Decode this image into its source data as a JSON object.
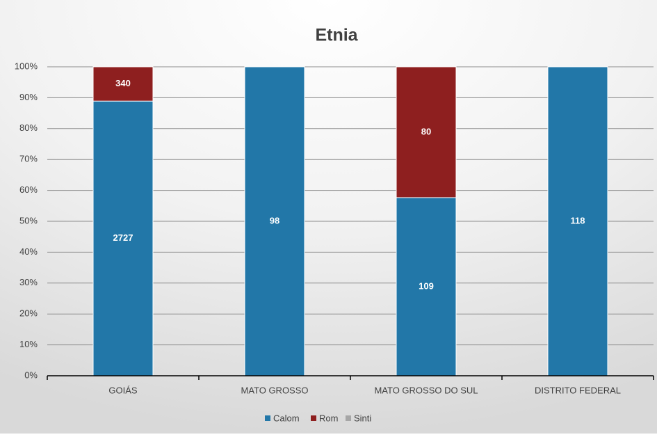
{
  "chart_data": {
    "type": "stacked_percent_bar",
    "title": "Etnia",
    "categories": [
      "GOIÁS",
      "MATO GROSSO",
      "MATO GROSSO DO SUL",
      "DISTRITO FEDERAL"
    ],
    "series": [
      {
        "name": "Calom",
        "color": "#2277a8",
        "values": [
          2727,
          98,
          109,
          118
        ]
      },
      {
        "name": "Rom",
        "color": "#8e1f1f",
        "values": [
          340,
          0,
          80,
          0
        ]
      },
      {
        "name": "Sinti",
        "color": "#a6a6a6",
        "values": [
          0,
          0,
          0,
          0
        ]
      }
    ],
    "ylim": [
      0,
      100
    ],
    "yticks": [
      {
        "value": 0,
        "label": "0%"
      },
      {
        "value": 10,
        "label": "10%"
      },
      {
        "value": 20,
        "label": "20%"
      },
      {
        "value": 30,
        "label": "30%"
      },
      {
        "value": 40,
        "label": "40%"
      },
      {
        "value": 50,
        "label": "50%"
      },
      {
        "value": 60,
        "label": "60%"
      },
      {
        "value": 70,
        "label": "70%"
      },
      {
        "value": 80,
        "label": "80%"
      },
      {
        "value": 90,
        "label": "90%"
      },
      {
        "value": 100,
        "label": "100%"
      }
    ],
    "grid": true,
    "legend": "bottom"
  }
}
